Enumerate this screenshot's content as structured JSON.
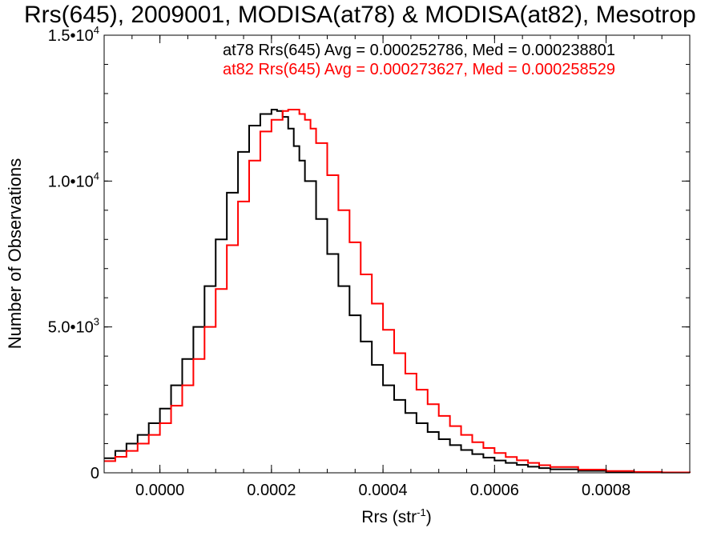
{
  "chart_data": {
    "type": "line",
    "title": "Rrs(645), 2009001, MODISA(at78) & MODISA(at82), Mesotrop",
    "xlabel": "Rrs (str",
    "xlabel_sup": "-1",
    "xlabel_close": ")",
    "ylabel": "Number of Observations",
    "xlim": [
      -0.0001,
      0.00095
    ],
    "ylim": [
      0,
      15000
    ],
    "x_ticks": [
      0.0,
      0.0002,
      0.0004,
      0.0006,
      0.0008
    ],
    "x_tick_labels": [
      "0.0000",
      "0.0002",
      "0.0004",
      "0.0006",
      "0.0008"
    ],
    "y_ticks": [
      0,
      5000,
      10000,
      15000
    ],
    "y_tick_labels": [
      {
        "base": "0",
        "exp": ""
      },
      {
        "base": "5.0•10",
        "exp": "3"
      },
      {
        "base": "1.0•10",
        "exp": "4"
      },
      {
        "base": "1.5•10",
        "exp": "4"
      }
    ],
    "grid": false,
    "step": true,
    "series": [
      {
        "name": "at78",
        "color": "#000000",
        "x": [
          -0.0001,
          -8e-05,
          -6e-05,
          -4e-05,
          -2e-05,
          0.0,
          2e-05,
          4e-05,
          6e-05,
          8e-05,
          0.0001,
          0.00012,
          0.00014,
          0.00016,
          0.00018,
          0.0002,
          0.00021,
          0.00022,
          0.00023,
          0.00024,
          0.00025,
          0.00026,
          0.00028,
          0.0003,
          0.00032,
          0.00034,
          0.00036,
          0.00038,
          0.0004,
          0.00042,
          0.00044,
          0.00046,
          0.00048,
          0.0005,
          0.00052,
          0.00054,
          0.00056,
          0.00058,
          0.0006,
          0.00062,
          0.00064,
          0.00066,
          0.00068,
          0.0007,
          0.00075,
          0.0008,
          0.00085,
          0.0009,
          0.00095
        ],
        "y": [
          500,
          750,
          1000,
          1300,
          1700,
          2200,
          3000,
          3900,
          5000,
          6400,
          8000,
          9600,
          11000,
          11900,
          12300,
          12450,
          12400,
          12200,
          11800,
          11200,
          10700,
          10000,
          8700,
          7500,
          6400,
          5400,
          4500,
          3700,
          3000,
          2500,
          2050,
          1700,
          1400,
          1150,
          950,
          780,
          640,
          520,
          420,
          340,
          270,
          210,
          160,
          120,
          70,
          40,
          20,
          10,
          5
        ]
      },
      {
        "name": "at82",
        "color": "#ff0000",
        "x": [
          -0.0001,
          -8e-05,
          -6e-05,
          -4e-05,
          -2e-05,
          0.0,
          2e-05,
          4e-05,
          6e-05,
          8e-05,
          0.0001,
          0.00012,
          0.00014,
          0.00016,
          0.00018,
          0.0002,
          0.00022,
          0.00023,
          0.00024,
          0.00025,
          0.00026,
          0.00027,
          0.00028,
          0.0003,
          0.00032,
          0.00034,
          0.00036,
          0.00038,
          0.0004,
          0.00042,
          0.00044,
          0.00046,
          0.00048,
          0.0005,
          0.00052,
          0.00054,
          0.00056,
          0.00058,
          0.0006,
          0.00062,
          0.00064,
          0.00066,
          0.00068,
          0.0007,
          0.00075,
          0.0008,
          0.00085,
          0.0009,
          0.00095
        ],
        "y": [
          400,
          550,
          750,
          1000,
          1300,
          1700,
          2300,
          3000,
          3900,
          5000,
          6300,
          7800,
          9300,
          10700,
          11700,
          12100,
          12400,
          12450,
          12450,
          12300,
          12100,
          11800,
          11300,
          10200,
          9000,
          7900,
          6800,
          5800,
          4900,
          4100,
          3400,
          2850,
          2350,
          1950,
          1600,
          1300,
          1050,
          850,
          680,
          540,
          430,
          340,
          260,
          200,
          110,
          60,
          30,
          15,
          5
        ]
      }
    ],
    "annotations": [
      {
        "text": "at78 Rrs(645) Avg = 0.000252786, Med = 0.000238801",
        "color": "#000000"
      },
      {
        "text": "at82 Rrs(645) Avg = 0.000273627, Med = 0.000258529",
        "color": "#ff0000"
      }
    ]
  }
}
